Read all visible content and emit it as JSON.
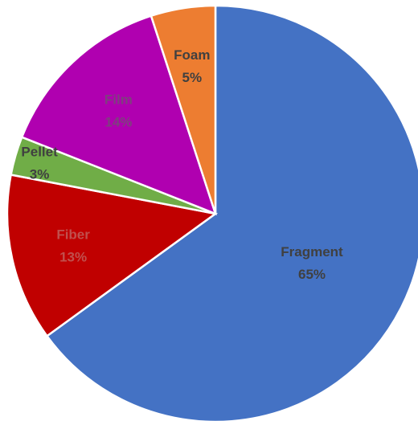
{
  "chart_data": {
    "type": "pie",
    "title": "",
    "slices": [
      {
        "label": "Fragment",
        "percent_label": "65%",
        "value": 65,
        "color": "#4472C4",
        "label_color": "#404040"
      },
      {
        "label": "Fiber",
        "percent_label": "13%",
        "value": 13,
        "color": "#C00000",
        "label_color": "#C0504D"
      },
      {
        "label": "Pellet",
        "percent_label": "3%",
        "value": 3,
        "color": "#70AD47",
        "label_color": "#404040"
      },
      {
        "label": "Film",
        "percent_label": "14%",
        "value": 14,
        "color": "#B000B0",
        "label_color": "#7F3F7F"
      },
      {
        "label": "Foam",
        "percent_label": "5%",
        "value": 5,
        "color": "#ED7D31",
        "label_color": "#404040"
      }
    ]
  }
}
